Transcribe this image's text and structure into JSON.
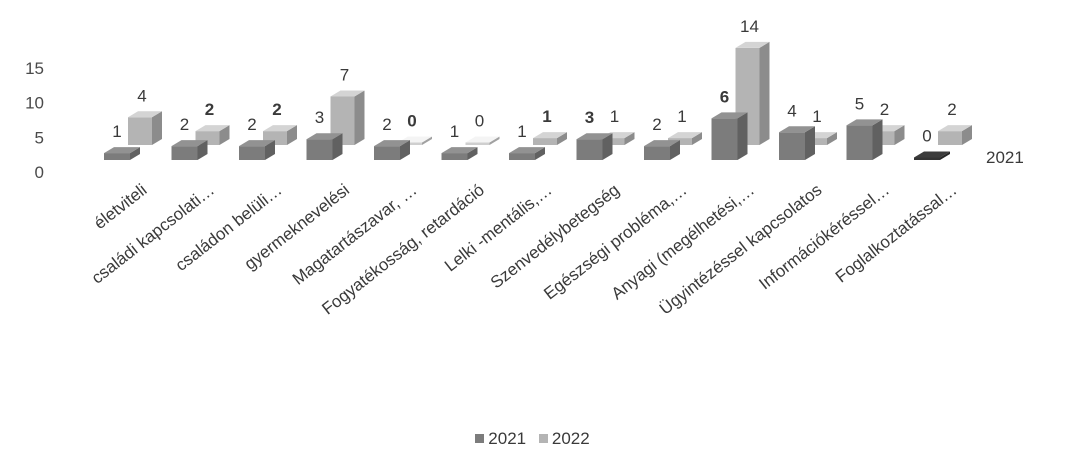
{
  "chart_data": {
    "type": "bar",
    "categories": [
      "életviteli",
      "családi kapcsolati…",
      "családon belüli…",
      "gyermeknevelési",
      "Magatartászavar, …",
      "Fogyatékosság, retardáció",
      "Lelki -mentális,…",
      "Szenvedélybetegség",
      "Egészségi probléma,…",
      "Anyagi (megélhetési,…",
      "Ügyintézéssel kapcsolatos",
      "Információkéréssel…",
      "Foglalkoztatással…"
    ],
    "series": [
      {
        "name": "2021",
        "values": [
          1,
          2,
          2,
          3,
          2,
          1,
          1,
          3,
          2,
          6,
          4,
          5,
          0
        ],
        "labels": [
          "1",
          "2",
          "2",
          "3",
          "2",
          "1",
          "1",
          "3",
          "2",
          "6",
          "4",
          "5",
          "0"
        ]
      },
      {
        "name": "2022",
        "values": [
          4,
          2,
          2,
          7,
          0,
          0,
          1,
          1,
          1,
          14,
          1,
          2,
          2
        ],
        "labels": [
          "4",
          "2",
          "2",
          "7",
          "0",
          "0",
          "1",
          "1",
          "1",
          "14",
          "1",
          "2",
          "2"
        ]
      }
    ],
    "depth_axis_label": "2021",
    "yticks": [
      0,
      5,
      10,
      15
    ],
    "ylim": [
      0,
      15
    ],
    "legend_position": "bottom",
    "colors": {
      "2021": "#7c7c7c",
      "2022": "#b4b4b4"
    }
  }
}
